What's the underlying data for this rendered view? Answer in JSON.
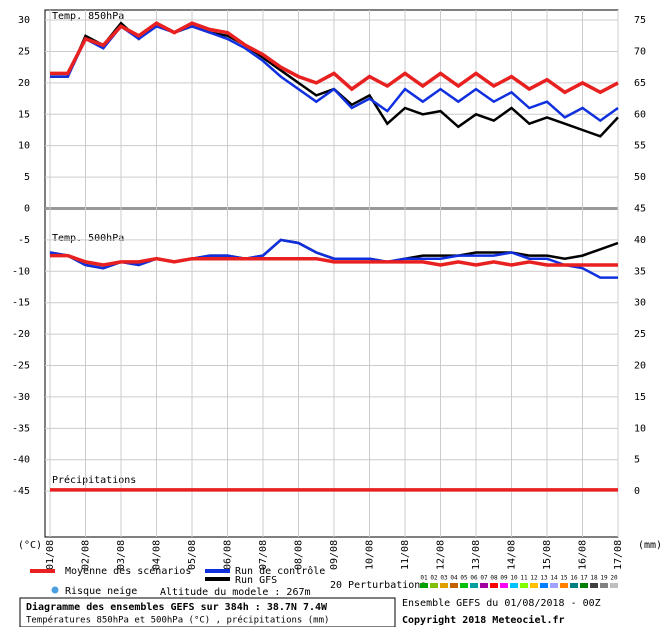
{
  "chart_data": {
    "type": "line",
    "label_850": "Temp. 850hPa",
    "label_500": "Temp. 500hPa",
    "label_precip": "Précipitations",
    "y_unit": "(°C)",
    "y2_unit": "(mm)",
    "x": [
      0,
      12,
      24,
      36,
      48,
      60,
      72,
      84,
      96,
      108,
      120,
      132,
      144,
      156,
      168,
      180,
      192,
      204,
      216,
      228,
      240,
      252,
      264,
      276,
      288,
      300,
      312,
      324,
      336,
      348,
      360,
      372,
      384
    ],
    "xlim": [
      0,
      384
    ],
    "xticks": [
      {
        "value": 0,
        "label": "01/08"
      },
      {
        "value": 24,
        "label": "02/08"
      },
      {
        "value": 48,
        "label": "03/08"
      },
      {
        "value": 72,
        "label": "04/08"
      },
      {
        "value": 96,
        "label": "05/08"
      },
      {
        "value": 120,
        "label": "06/08"
      },
      {
        "value": 144,
        "label": "07/08"
      },
      {
        "value": 168,
        "label": "08/08"
      },
      {
        "value": 192,
        "label": "09/08"
      },
      {
        "value": 216,
        "label": "10/08"
      },
      {
        "value": 240,
        "label": "11/08"
      },
      {
        "value": 264,
        "label": "12/08"
      },
      {
        "value": 288,
        "label": "13/08"
      },
      {
        "value": 312,
        "label": "14/08"
      },
      {
        "value": 336,
        "label": "15/08"
      },
      {
        "value": 360,
        "label": "16/08"
      },
      {
        "value": 384,
        "label": "17/08"
      }
    ],
    "ylim": [
      -52.3,
      31.6
    ],
    "yticks": [
      30,
      25,
      20,
      15,
      10,
      5,
      0,
      -5,
      -10,
      -15,
      -20,
      -25,
      -30,
      -35,
      -40,
      -45
    ],
    "y2lim": [
      -7.3,
      76.6
    ],
    "y2ticks": [
      75,
      70,
      65,
      60,
      55,
      50,
      45,
      40,
      35,
      30,
      25,
      20,
      15,
      10,
      5,
      0
    ],
    "grid": true,
    "series": [
      {
        "name": "Moyenne des scénarios",
        "color": "#e82020",
        "width": 3.5,
        "t850": [
          21.5,
          21.5,
          27,
          26,
          29,
          27.5,
          29.5,
          28,
          29.5,
          28.5,
          28,
          26,
          24.5,
          22.5,
          21,
          20,
          21.5,
          19,
          21,
          19.5,
          21.5,
          19.5,
          21.5,
          19.5,
          21.5,
          19.5,
          21,
          19,
          20.5,
          18.5,
          20,
          18.5,
          20
        ],
        "t500": [
          -7.5,
          -7.5,
          -8.5,
          -9,
          -8.5,
          -8.5,
          -8,
          -8.5,
          -8,
          -8,
          -8,
          -8,
          -8,
          -8,
          -8,
          -8,
          -8.5,
          -8.5,
          -8.5,
          -8.5,
          -8.5,
          -8.5,
          -9,
          -8.5,
          -9,
          -8.5,
          -9,
          -8.5,
          -9,
          -9,
          -9,
          -9,
          -9
        ],
        "precip": [
          0.2,
          0.2,
          0.2,
          0.2,
          0.2,
          0.2,
          0.2,
          0.2,
          0.2,
          0.2,
          0.2,
          0.2,
          0.2,
          0.2,
          0.2,
          0.2,
          0.2,
          0.2,
          0.2,
          0.2,
          0.2,
          0.2,
          0.2,
          0.2,
          0.2,
          0.2,
          0.2,
          0.2,
          0.2,
          0.2,
          0.2,
          0.2,
          0.2
        ]
      },
      {
        "name": "Run de contrôle",
        "color": "#1030e0",
        "width": 2.5,
        "t850": [
          21,
          21,
          27,
          25.5,
          29,
          27,
          29,
          28,
          29,
          28,
          27,
          25.5,
          23.5,
          21,
          19,
          17,
          19,
          16,
          17.5,
          15.5,
          19,
          17,
          19,
          17,
          19,
          17,
          18.5,
          16,
          17,
          14.5,
          16,
          14,
          16
        ],
        "t500": [
          -7,
          -7.5,
          -9,
          -9.5,
          -8.5,
          -9,
          -8,
          -8.5,
          -8,
          -7.5,
          -7.5,
          -8,
          -7.5,
          -5,
          -5.5,
          -7,
          -8,
          -8,
          -8,
          -8.5,
          -8,
          -8,
          -8,
          -7.5,
          -7.5,
          -7.5,
          -7,
          -8,
          -8,
          -9,
          -9.5,
          -11,
          -11
        ]
      },
      {
        "name": "Run GFS",
        "color": "#000000",
        "width": 2.5,
        "t850": [
          21,
          21,
          27.5,
          26,
          29.5,
          27,
          29.5,
          28,
          29,
          28,
          27.5,
          26,
          24,
          22,
          20,
          18,
          19,
          16.5,
          18,
          13.5,
          16,
          15,
          15.5,
          13,
          15,
          14,
          16,
          13.5,
          14.5,
          13.5,
          12.5,
          11.5,
          14.5
        ],
        "t500": [
          -7,
          -7.5,
          -9,
          -9.5,
          -8.5,
          -9,
          -8,
          -8.5,
          -8,
          -7.5,
          -7.5,
          -8,
          -7.5,
          -5,
          -5.5,
          -7,
          -8,
          -8,
          -8,
          -8.5,
          -8,
          -7.5,
          -7.5,
          -7.5,
          -7,
          -7,
          -7,
          -7.5,
          -7.5,
          -8,
          -7.5,
          -6.5,
          -5.5
        ]
      }
    ],
    "perturbations_label": "20 Perturbations",
    "perturbations": [
      {
        "name": "01",
        "color": "#00a000"
      },
      {
        "name": "02",
        "color": "#80c000"
      },
      {
        "name": "03",
        "color": "#e0a000"
      },
      {
        "name": "04",
        "color": "#c06000"
      },
      {
        "name": "05",
        "color": "#00c000"
      },
      {
        "name": "06",
        "color": "#00a0a0"
      },
      {
        "name": "07",
        "color": "#a000a0"
      },
      {
        "name": "08",
        "color": "#ff0000"
      },
      {
        "name": "09",
        "color": "#ff00ff"
      },
      {
        "name": "10",
        "color": "#00c0ff"
      },
      {
        "name": "11",
        "color": "#80ff00"
      },
      {
        "name": "12",
        "color": "#ffc000"
      },
      {
        "name": "13",
        "color": "#0080ff"
      },
      {
        "name": "14",
        "color": "#a0a0ff"
      },
      {
        "name": "15",
        "color": "#ff8000"
      },
      {
        "name": "16",
        "color": "#008080"
      },
      {
        "name": "17",
        "color": "#008000"
      },
      {
        "name": "18",
        "color": "#404040"
      },
      {
        "name": "19",
        "color": "#808080"
      },
      {
        "name": "20",
        "color": "#c0c0c0"
      }
    ],
    "snow_label": "Risque neige",
    "altitude": "Altitude du modele : 267m",
    "title": "Diagramme des ensembles GEFS sur 384h : 38.7N 7.4W",
    "subtitle": "Températures 850hPa et 500hPa (°C) , précipitations (mm)",
    "run_info": "Ensemble GEFS du 01/08/2018 - 00Z",
    "copyright": "Copyright 2018 Meteociel.fr"
  }
}
